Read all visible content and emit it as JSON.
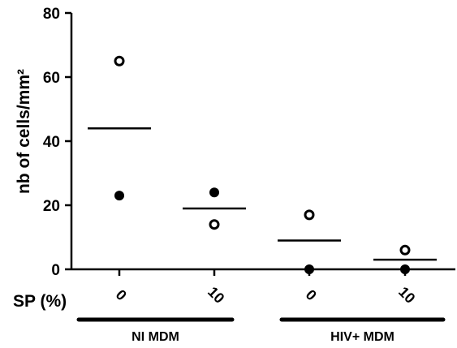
{
  "chart_data": {
    "type": "scatter",
    "title": "",
    "ylabel": "nb of cells/mm²",
    "xlabel_prefix": "SP (%)",
    "ylim": [
      0,
      80
    ],
    "yticks": [
      "0",
      "20",
      "40",
      "60",
      "80"
    ],
    "categories": [
      "0",
      "10",
      "0",
      "10"
    ],
    "groups": [
      {
        "label": "NI MDM",
        "categories": [
          0,
          1
        ]
      },
      {
        "label": "HIV+ MDM",
        "categories": [
          2,
          3
        ]
      }
    ],
    "series": [
      {
        "marker": "open-circle",
        "values": [
          65,
          14,
          17,
          6
        ]
      },
      {
        "marker": "filled-circle",
        "values": [
          23,
          24,
          0,
          0
        ]
      }
    ],
    "means": [
      44,
      19,
      9,
      3
    ],
    "colors": {
      "ink": "#000000",
      "background": "#ffffff"
    }
  }
}
